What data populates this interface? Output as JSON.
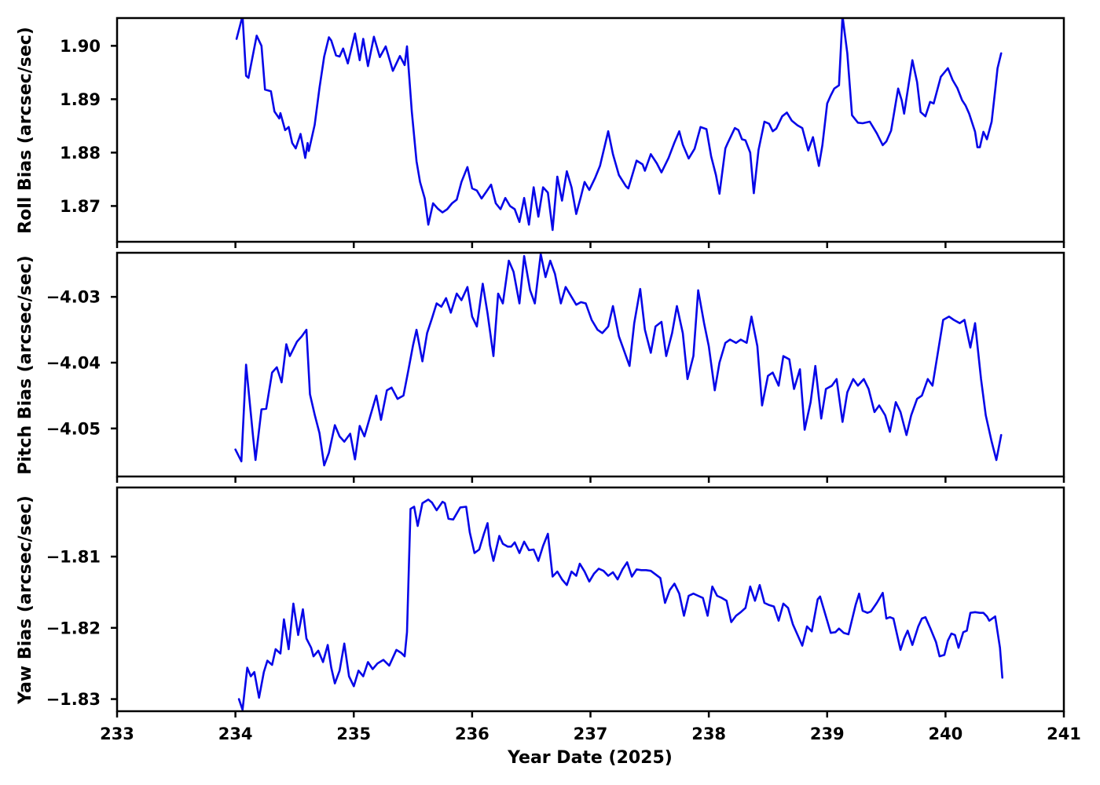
{
  "figure": {
    "background": "#ffffff"
  },
  "chart_data": [
    {
      "type": "line",
      "name": "roll-bias",
      "ylabel": "Roll Bias (arcsec/sec)",
      "xlabel": "",
      "line_color": "#0707e8",
      "axis_color": "#000000",
      "grid": false,
      "legend": "none",
      "xlim": [
        233,
        241
      ],
      "ylim": [
        1.8633,
        1.9052
      ],
      "xticks": [
        233,
        234,
        235,
        236,
        237,
        238,
        239,
        240,
        241
      ],
      "xtick_labels": [],
      "yticks": [
        {
          "value": 1.9,
          "label": "1.90"
        },
        {
          "value": 1.89,
          "label": "1.89"
        },
        {
          "value": 1.88,
          "label": "1.88"
        },
        {
          "value": 1.87,
          "label": "1.87"
        }
      ],
      "x": [
        234.01,
        234.06,
        234.09,
        234.11,
        234.18,
        234.22,
        234.25,
        234.3,
        234.33,
        234.37,
        234.38,
        234.42,
        234.45,
        234.48,
        234.51,
        234.55,
        234.57,
        234.59,
        234.61,
        234.62,
        234.67,
        234.71,
        234.75,
        234.79,
        234.81,
        234.85,
        234.88,
        234.91,
        234.95,
        235.01,
        235.05,
        235.08,
        235.12,
        235.17,
        235.22,
        235.27,
        235.33,
        235.39,
        235.43,
        235.45,
        235.49,
        235.53,
        235.56,
        235.6,
        235.63,
        235.67,
        235.71,
        235.75,
        235.79,
        235.83,
        235.87,
        235.91,
        235.96,
        236.0,
        236.04,
        236.08,
        236.12,
        236.16,
        236.2,
        236.24,
        236.28,
        236.32,
        236.36,
        236.4,
        236.44,
        236.48,
        236.52,
        236.56,
        236.6,
        236.64,
        236.68,
        236.72,
        236.76,
        236.8,
        236.84,
        236.88,
        236.92,
        236.95,
        236.99,
        237.04,
        237.08,
        237.15,
        237.19,
        237.24,
        237.3,
        237.32,
        237.39,
        237.44,
        237.46,
        237.51,
        237.56,
        237.6,
        237.66,
        237.71,
        237.75,
        237.78,
        237.83,
        237.88,
        237.93,
        237.98,
        238.02,
        238.06,
        238.09,
        238.14,
        238.16,
        238.22,
        238.25,
        238.28,
        238.31,
        238.35,
        238.38,
        238.42,
        238.47,
        238.51,
        238.54,
        238.57,
        238.62,
        238.66,
        238.7,
        238.75,
        238.79,
        238.84,
        238.88,
        238.93,
        238.96,
        239.0,
        239.03,
        239.06,
        239.1,
        239.13,
        239.17,
        239.21,
        239.26,
        239.3,
        239.36,
        239.42,
        239.47,
        239.5,
        239.54,
        239.6,
        239.63,
        239.65,
        239.72,
        239.76,
        239.79,
        239.83,
        239.87,
        239.9,
        239.96,
        240.02,
        240.06,
        240.1,
        240.14,
        240.17,
        240.2,
        240.25,
        240.27,
        240.29,
        240.32,
        240.35,
        240.39,
        240.42,
        240.44,
        240.47
      ],
      "y": [
        1.9013,
        1.9056,
        1.8944,
        1.894,
        1.9019,
        1.9,
        1.8918,
        1.8915,
        1.8877,
        1.8864,
        1.8874,
        1.8842,
        1.8848,
        1.8818,
        1.8808,
        1.8835,
        1.8813,
        1.879,
        1.8818,
        1.8803,
        1.8852,
        1.8921,
        1.898,
        1.9016,
        1.901,
        1.8982,
        1.898,
        1.8995,
        1.8967,
        1.9023,
        1.8973,
        1.9013,
        1.8962,
        1.9017,
        1.8979,
        1.8999,
        1.8953,
        1.8981,
        1.8964,
        1.8999,
        1.8877,
        1.8784,
        1.8745,
        1.8714,
        1.8665,
        1.8705,
        1.8695,
        1.8688,
        1.8694,
        1.8705,
        1.8712,
        1.8745,
        1.8773,
        1.8733,
        1.8729,
        1.8714,
        1.8727,
        1.874,
        1.8705,
        1.8694,
        1.8715,
        1.87,
        1.8694,
        1.867,
        1.8715,
        1.8665,
        1.8735,
        1.868,
        1.8735,
        1.8725,
        1.8655,
        1.8755,
        1.871,
        1.8765,
        1.8735,
        1.8685,
        1.8718,
        1.8745,
        1.873,
        1.8753,
        1.8775,
        1.884,
        1.8797,
        1.8758,
        1.8737,
        1.8733,
        1.8785,
        1.8778,
        1.8766,
        1.8797,
        1.878,
        1.8763,
        1.879,
        1.8819,
        1.884,
        1.8815,
        1.8789,
        1.8807,
        1.8848,
        1.8844,
        1.8793,
        1.8758,
        1.8723,
        1.8808,
        1.8818,
        1.8846,
        1.8842,
        1.8825,
        1.8823,
        1.88,
        1.8724,
        1.8805,
        1.8858,
        1.8854,
        1.884,
        1.8845,
        1.8868,
        1.8875,
        1.886,
        1.8851,
        1.8846,
        1.8804,
        1.8829,
        1.8775,
        1.8814,
        1.8892,
        1.8907,
        1.892,
        1.8926,
        1.9056,
        1.8986,
        1.887,
        1.8856,
        1.8855,
        1.8858,
        1.8836,
        1.8814,
        1.8821,
        1.8841,
        1.892,
        1.8898,
        1.8873,
        1.8973,
        1.8932,
        1.8876,
        1.8868,
        1.8895,
        1.8892,
        1.8942,
        1.8958,
        1.8936,
        1.8921,
        1.8898,
        1.8888,
        1.8873,
        1.8839,
        1.881,
        1.881,
        1.8839,
        1.8825,
        1.8858,
        1.8917,
        1.8958,
        1.8986
      ]
    },
    {
      "type": "line",
      "name": "pitch-bias",
      "ylabel": "Pitch Bias (arcsec/sec)",
      "xlabel": "",
      "line_color": "#0707e8",
      "axis_color": "#000000",
      "grid": false,
      "legend": "none",
      "xlim": [
        233,
        241
      ],
      "ylim": [
        -4.0573,
        -4.0233
      ],
      "xticks": [
        233,
        234,
        235,
        236,
        237,
        238,
        239,
        240,
        241
      ],
      "xtick_labels": [],
      "yticks": [
        {
          "value": -4.03,
          "label": "−4.03"
        },
        {
          "value": -4.04,
          "label": "−4.04"
        },
        {
          "value": -4.05,
          "label": "−4.05"
        }
      ],
      "x": [
        234.0,
        234.05,
        234.09,
        234.15,
        234.17,
        234.22,
        234.26,
        234.31,
        234.35,
        234.39,
        234.43,
        234.46,
        234.52,
        234.56,
        234.6,
        234.63,
        234.67,
        234.71,
        234.75,
        234.79,
        234.84,
        234.88,
        234.92,
        234.97,
        235.01,
        235.05,
        235.09,
        235.14,
        235.19,
        235.23,
        235.28,
        235.32,
        235.37,
        235.42,
        235.46,
        235.5,
        235.53,
        235.58,
        235.62,
        235.66,
        235.7,
        235.74,
        235.78,
        235.82,
        235.87,
        235.91,
        235.96,
        236.0,
        236.04,
        236.09,
        236.13,
        236.18,
        236.22,
        236.26,
        236.31,
        236.35,
        236.4,
        236.44,
        236.49,
        236.53,
        236.58,
        236.62,
        236.66,
        236.7,
        236.75,
        236.79,
        236.84,
        236.88,
        236.92,
        236.96,
        237.01,
        237.06,
        237.1,
        237.15,
        237.19,
        237.24,
        237.28,
        237.33,
        237.37,
        237.42,
        237.46,
        237.51,
        237.55,
        237.6,
        237.64,
        237.69,
        237.73,
        237.78,
        237.82,
        237.87,
        237.91,
        237.96,
        238.0,
        238.05,
        238.09,
        238.14,
        238.18,
        238.23,
        238.27,
        238.32,
        238.36,
        238.41,
        238.45,
        238.5,
        238.54,
        238.59,
        238.63,
        238.68,
        238.72,
        238.77,
        238.81,
        238.86,
        238.9,
        238.95,
        238.99,
        239.04,
        239.08,
        239.13,
        239.17,
        239.22,
        239.26,
        239.31,
        239.35,
        239.4,
        239.44,
        239.49,
        239.53,
        239.58,
        239.62,
        239.67,
        239.71,
        239.76,
        239.8,
        239.85,
        239.89,
        239.94,
        239.98,
        240.03,
        240.07,
        240.12,
        240.16,
        240.21,
        240.25,
        240.3,
        240.34,
        240.39,
        240.43,
        240.47
      ],
      "y": [
        -4.0532,
        -4.055,
        -4.0403,
        -4.0514,
        -4.0548,
        -4.0471,
        -4.047,
        -4.0415,
        -4.0407,
        -4.043,
        -4.0372,
        -4.039,
        -4.0368,
        -4.036,
        -4.035,
        -4.0448,
        -4.0479,
        -4.0507,
        -4.0556,
        -4.0537,
        -4.0495,
        -4.0512,
        -4.052,
        -4.0508,
        -4.0547,
        -4.0496,
        -4.0512,
        -4.0481,
        -4.045,
        -4.0487,
        -4.0442,
        -4.0438,
        -4.0455,
        -4.045,
        -4.0413,
        -4.0374,
        -4.035,
        -4.0398,
        -4.0355,
        -4.0333,
        -4.031,
        -4.0315,
        -4.0302,
        -4.0324,
        -4.0295,
        -4.0305,
        -4.0285,
        -4.033,
        -4.0345,
        -4.028,
        -4.0325,
        -4.039,
        -4.0295,
        -4.031,
        -4.0245,
        -4.0262,
        -4.031,
        -4.0238,
        -4.029,
        -4.031,
        -4.0235,
        -4.027,
        -4.0245,
        -4.0265,
        -4.031,
        -4.0285,
        -4.03,
        -4.0312,
        -4.0308,
        -4.031,
        -4.0335,
        -4.035,
        -4.0355,
        -4.0345,
        -4.0314,
        -4.036,
        -4.038,
        -4.0405,
        -4.034,
        -4.0288,
        -4.035,
        -4.0385,
        -4.0345,
        -4.0338,
        -4.039,
        -4.0355,
        -4.0314,
        -4.0355,
        -4.0425,
        -4.039,
        -4.029,
        -4.034,
        -4.0375,
        -4.0442,
        -4.04,
        -4.037,
        -4.0365,
        -4.037,
        -4.0365,
        -4.037,
        -4.033,
        -4.0375,
        -4.0465,
        -4.042,
        -4.0415,
        -4.0435,
        -4.039,
        -4.0395,
        -4.044,
        -4.041,
        -4.0502,
        -4.046,
        -4.0405,
        -4.0485,
        -4.044,
        -4.0435,
        -4.0425,
        -4.049,
        -4.0445,
        -4.0425,
        -4.0435,
        -4.0425,
        -4.044,
        -4.0475,
        -4.0465,
        -4.048,
        -4.0505,
        -4.046,
        -4.0475,
        -4.051,
        -4.048,
        -4.0455,
        -4.045,
        -4.0425,
        -4.0435,
        -4.038,
        -4.0335,
        -4.033,
        -4.0335,
        -4.034,
        -4.0335,
        -4.0377,
        -4.034,
        -4.0425,
        -4.048,
        -4.052,
        -4.0548,
        -4.051
      ]
    },
    {
      "type": "line",
      "name": "yaw-bias",
      "ylabel": "Yaw Bias (arcsec/sec)",
      "xlabel": "Year Date (2025)",
      "line_color": "#0707e8",
      "axis_color": "#000000",
      "grid": false,
      "legend": "none",
      "xlim": [
        233,
        241
      ],
      "ylim": [
        -1.8317,
        -1.8003
      ],
      "xticks": [
        233,
        234,
        235,
        236,
        237,
        238,
        239,
        240,
        241
      ],
      "xtick_labels": [
        "233",
        "234",
        "235",
        "236",
        "237",
        "238",
        "239",
        "240",
        "241"
      ],
      "yticks": [
        {
          "value": -1.81,
          "label": "−1.81"
        },
        {
          "value": -1.82,
          "label": "−1.82"
        },
        {
          "value": -1.83,
          "label": "−1.83"
        }
      ],
      "x": [
        234.03,
        234.06,
        234.1,
        234.13,
        234.16,
        234.2,
        234.24,
        234.27,
        234.31,
        234.34,
        234.38,
        234.41,
        234.45,
        234.49,
        234.53,
        234.57,
        234.6,
        234.64,
        234.66,
        234.7,
        234.74,
        234.78,
        234.81,
        234.84,
        234.88,
        234.92,
        234.96,
        235.0,
        235.04,
        235.08,
        235.12,
        235.16,
        235.2,
        235.25,
        235.3,
        235.36,
        235.4,
        235.43,
        235.45,
        235.48,
        235.51,
        235.54,
        235.58,
        235.63,
        235.66,
        235.7,
        235.75,
        235.77,
        235.8,
        235.84,
        235.9,
        235.95,
        235.98,
        236.02,
        236.06,
        236.1,
        236.13,
        236.15,
        236.18,
        236.23,
        236.26,
        236.3,
        236.33,
        236.36,
        236.4,
        236.44,
        236.48,
        236.52,
        236.56,
        236.6,
        236.64,
        236.68,
        236.72,
        236.76,
        236.8,
        236.84,
        236.88,
        236.91,
        236.95,
        236.99,
        237.03,
        237.07,
        237.11,
        237.15,
        237.19,
        237.23,
        237.27,
        237.31,
        237.35,
        237.39,
        237.43,
        237.47,
        237.51,
        237.55,
        237.59,
        237.63,
        237.67,
        237.71,
        237.75,
        237.79,
        237.83,
        237.87,
        237.91,
        237.95,
        237.99,
        238.03,
        238.07,
        238.11,
        238.15,
        238.19,
        238.23,
        238.27,
        238.31,
        238.35,
        238.39,
        238.43,
        238.47,
        238.51,
        238.55,
        238.59,
        238.63,
        238.67,
        238.71,
        238.75,
        238.79,
        238.83,
        238.87,
        238.92,
        238.94,
        239.0,
        239.03,
        239.07,
        239.1,
        239.14,
        239.18,
        239.24,
        239.27,
        239.3,
        239.34,
        239.37,
        239.42,
        239.47,
        239.5,
        239.53,
        239.56,
        239.62,
        239.65,
        239.68,
        239.72,
        239.77,
        239.8,
        239.83,
        239.87,
        239.92,
        239.95,
        239.99,
        240.02,
        240.05,
        240.08,
        240.11,
        240.15,
        240.18,
        240.21,
        240.25,
        240.29,
        240.32,
        240.35,
        240.37,
        240.42,
        240.46,
        240.48
      ],
      "y": [
        -1.83,
        -1.8315,
        -1.8256,
        -1.8268,
        -1.8262,
        -1.8298,
        -1.8262,
        -1.8246,
        -1.8252,
        -1.823,
        -1.8236,
        -1.8188,
        -1.823,
        -1.8166,
        -1.821,
        -1.8174,
        -1.8215,
        -1.8228,
        -1.824,
        -1.8232,
        -1.8248,
        -1.8224,
        -1.8256,
        -1.8278,
        -1.826,
        -1.8222,
        -1.8268,
        -1.8282,
        -1.826,
        -1.8268,
        -1.8248,
        -1.8258,
        -1.825,
        -1.8245,
        -1.8253,
        -1.8231,
        -1.8235,
        -1.824,
        -1.8206,
        -1.8033,
        -1.803,
        -1.8057,
        -1.8025,
        -1.802,
        -1.8024,
        -1.8035,
        -1.8023,
        -1.8025,
        -1.8047,
        -1.8048,
        -1.8031,
        -1.803,
        -1.8066,
        -1.8095,
        -1.809,
        -1.8068,
        -1.8053,
        -1.8084,
        -1.8106,
        -1.8071,
        -1.8082,
        -1.8086,
        -1.8086,
        -1.808,
        -1.8095,
        -1.8079,
        -1.8091,
        -1.809,
        -1.8106,
        -1.8085,
        -1.8068,
        -1.8128,
        -1.8121,
        -1.8132,
        -1.814,
        -1.8121,
        -1.8127,
        -1.811,
        -1.8121,
        -1.8135,
        -1.8124,
        -1.8117,
        -1.812,
        -1.8127,
        -1.8122,
        -1.8132,
        -1.8118,
        -1.8108,
        -1.8128,
        -1.8118,
        -1.8119,
        -1.8119,
        -1.812,
        -1.8125,
        -1.813,
        -1.8165,
        -1.8147,
        -1.8138,
        -1.8152,
        -1.8183,
        -1.8155,
        -1.8152,
        -1.8155,
        -1.8158,
        -1.8183,
        -1.8142,
        -1.8155,
        -1.8158,
        -1.8162,
        -1.8192,
        -1.8183,
        -1.8178,
        -1.8172,
        -1.8142,
        -1.8162,
        -1.814,
        -1.8165,
        -1.8168,
        -1.817,
        -1.819,
        -1.8166,
        -1.8172,
        -1.8195,
        -1.821,
        -1.8225,
        -1.8198,
        -1.8205,
        -1.816,
        -1.8156,
        -1.819,
        -1.8207,
        -1.8206,
        -1.8201,
        -1.8207,
        -1.8209,
        -1.8168,
        -1.8152,
        -1.8176,
        -1.8179,
        -1.8177,
        -1.8165,
        -1.8151,
        -1.8187,
        -1.8185,
        -1.8187,
        -1.8231,
        -1.8215,
        -1.8204,
        -1.8224,
        -1.8198,
        -1.8187,
        -1.8185,
        -1.82,
        -1.822,
        -1.824,
        -1.8238,
        -1.8218,
        -1.8208,
        -1.821,
        -1.8228,
        -1.8206,
        -1.8204,
        -1.8179,
        -1.8178,
        -1.8179,
        -1.8179,
        -1.8184,
        -1.819,
        -1.8184,
        -1.8228,
        -1.827
      ]
    }
  ]
}
